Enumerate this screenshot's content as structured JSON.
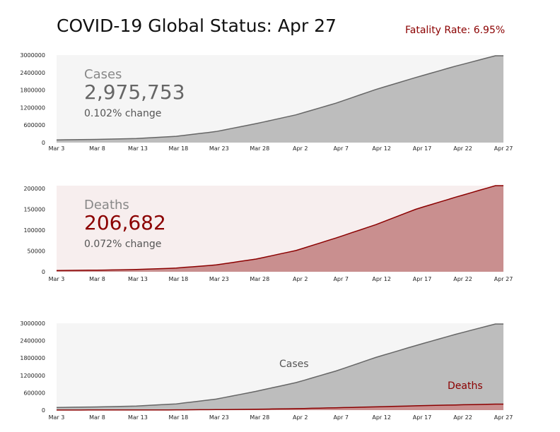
{
  "header": {
    "title": "COVID-19 Global Status: Apr 27",
    "fatality": "Fatality Rate: 6.95%"
  },
  "colors": {
    "cases_line": "#666666",
    "cases_fill": "#bdbdbd",
    "deaths_line": "#8b0000",
    "deaths_fill": "#c98f8f",
    "panel_bg_cases": "#f5f5f5",
    "panel_bg_deaths": "#f7eeee",
    "death_text": "#8b0000",
    "muted_text": "#888888"
  },
  "chart_data": [
    {
      "type": "area",
      "series": [
        {
          "name": "Cases",
          "x": [
            "Mar 3",
            "Mar 8",
            "Mar 13",
            "Mar 18",
            "Mar 23",
            "Mar 28",
            "Apr 2",
            "Apr 7",
            "Apr 12",
            "Apr 17",
            "Apr 22",
            "Apr 27"
          ],
          "values": [
            92000,
            110000,
            140000,
            215000,
            380000,
            650000,
            950000,
            1350000,
            1820000,
            2230000,
            2620000,
            2975753
          ]
        }
      ],
      "xticks": [
        "Mar 3",
        "Mar 8",
        "Mar 13",
        "Mar 18",
        "Mar 23",
        "Mar 28",
        "Apr 2",
        "Apr 7",
        "Apr 12",
        "Apr 17",
        "Apr 22",
        "Apr 27"
      ],
      "yticks": [
        "0",
        "600000",
        "1200000",
        "1800000",
        "2400000",
        "3000000"
      ],
      "ylim": [
        0,
        3000000
      ],
      "annotation": {
        "label": "Cases",
        "value": "2,975,753",
        "change": "0.102% change"
      }
    },
    {
      "type": "area",
      "series": [
        {
          "name": "Deaths",
          "x": [
            "Mar 3",
            "Mar 8",
            "Mar 13",
            "Mar 18",
            "Mar 23",
            "Mar 28",
            "Apr 2",
            "Apr 7",
            "Apr 12",
            "Apr 17",
            "Apr 22",
            "Apr 27"
          ],
          "values": [
            3100,
            3800,
            5400,
            8900,
            16500,
            30500,
            51000,
            81000,
            113000,
            150000,
            179000,
            206682
          ]
        }
      ],
      "xticks": [
        "Mar 3",
        "Mar 8",
        "Mar 13",
        "Mar 18",
        "Mar 23",
        "Mar 28",
        "Apr 2",
        "Apr 7",
        "Apr 12",
        "Apr 17",
        "Apr 22",
        "Apr 27"
      ],
      "yticks": [
        "0",
        "50000",
        "100000",
        "150000",
        "200000"
      ],
      "ylim": [
        0,
        206682
      ],
      "annotation": {
        "label": "Deaths",
        "value": "206,682",
        "change": "0.072% change"
      }
    },
    {
      "type": "area",
      "series": [
        {
          "name": "Cases",
          "x": [
            "Mar 3",
            "Mar 8",
            "Mar 13",
            "Mar 18",
            "Mar 23",
            "Mar 28",
            "Apr 2",
            "Apr 7",
            "Apr 12",
            "Apr 17",
            "Apr 22",
            "Apr 27"
          ],
          "values": [
            92000,
            110000,
            140000,
            215000,
            380000,
            650000,
            950000,
            1350000,
            1820000,
            2230000,
            2620000,
            2975753
          ]
        },
        {
          "name": "Deaths",
          "x": [
            "Mar 3",
            "Mar 8",
            "Mar 13",
            "Mar 18",
            "Mar 23",
            "Mar 28",
            "Apr 2",
            "Apr 7",
            "Apr 12",
            "Apr 17",
            "Apr 22",
            "Apr 27"
          ],
          "values": [
            3100,
            3800,
            5400,
            8900,
            16500,
            30500,
            51000,
            81000,
            113000,
            150000,
            179000,
            206682
          ]
        }
      ],
      "xticks": [
        "Mar 3",
        "Mar 8",
        "Mar 13",
        "Mar 18",
        "Mar 23",
        "Mar 28",
        "Apr 2",
        "Apr 7",
        "Apr 12",
        "Apr 17",
        "Apr 22",
        "Apr 27"
      ],
      "yticks": [
        "0",
        "600000",
        "1200000",
        "1800000",
        "2400000",
        "3000000"
      ],
      "ylim": [
        0,
        3000000
      ],
      "labels": [
        "Cases",
        "Deaths"
      ]
    }
  ]
}
